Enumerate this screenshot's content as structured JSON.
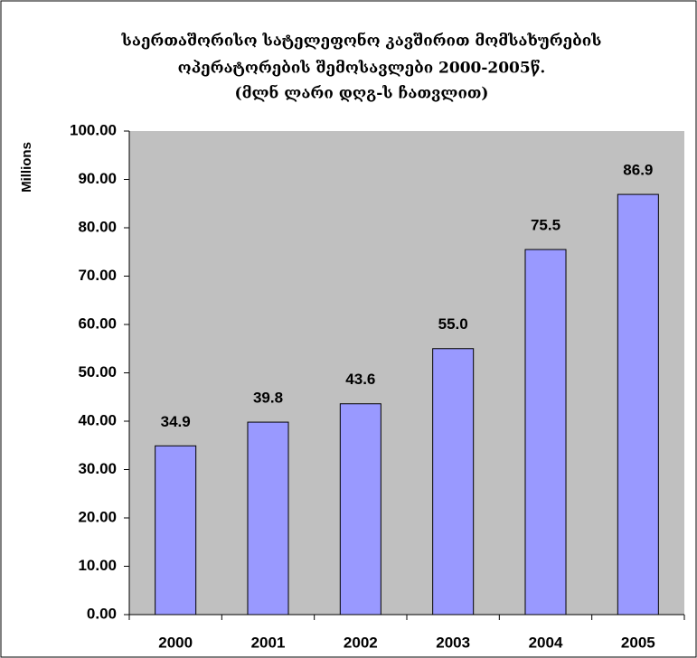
{
  "chart_data": {
    "type": "bar",
    "title": [
      "საერთაშორისო სატელეფონო კავშირით მომსახურების",
      "ოპერატორების შემოსავლები 2000-2005წ.",
      "(მლნ ლარი დღგ-ს ჩათვლით)"
    ],
    "y_label": "Millions",
    "categories": [
      "2000",
      "2001",
      "2002",
      "2003",
      "2004",
      "2005"
    ],
    "values": [
      34.9,
      39.8,
      43.6,
      55,
      75.5,
      86.9
    ],
    "value_labels": [
      "34.9",
      "39.8",
      "43.6",
      "55.0",
      "75.5",
      "86.9"
    ],
    "color": "#9999ff",
    "ylim": [
      0,
      100
    ],
    "yticks": [
      {
        "value": 0,
        "label": "0.00"
      },
      {
        "value": 10,
        "label": "10.00"
      },
      {
        "value": 20,
        "label": "20.00"
      },
      {
        "value": 30,
        "label": "30.00"
      },
      {
        "value": 40,
        "label": "40.00"
      },
      {
        "value": 50,
        "label": "50.00"
      },
      {
        "value": 60,
        "label": "60.00"
      },
      {
        "value": 70,
        "label": "70.00"
      },
      {
        "value": 80,
        "label": "80.00"
      },
      {
        "value": 90,
        "label": "90.00"
      },
      {
        "value": 100,
        "label": "100.00"
      }
    ],
    "grid": false
  }
}
